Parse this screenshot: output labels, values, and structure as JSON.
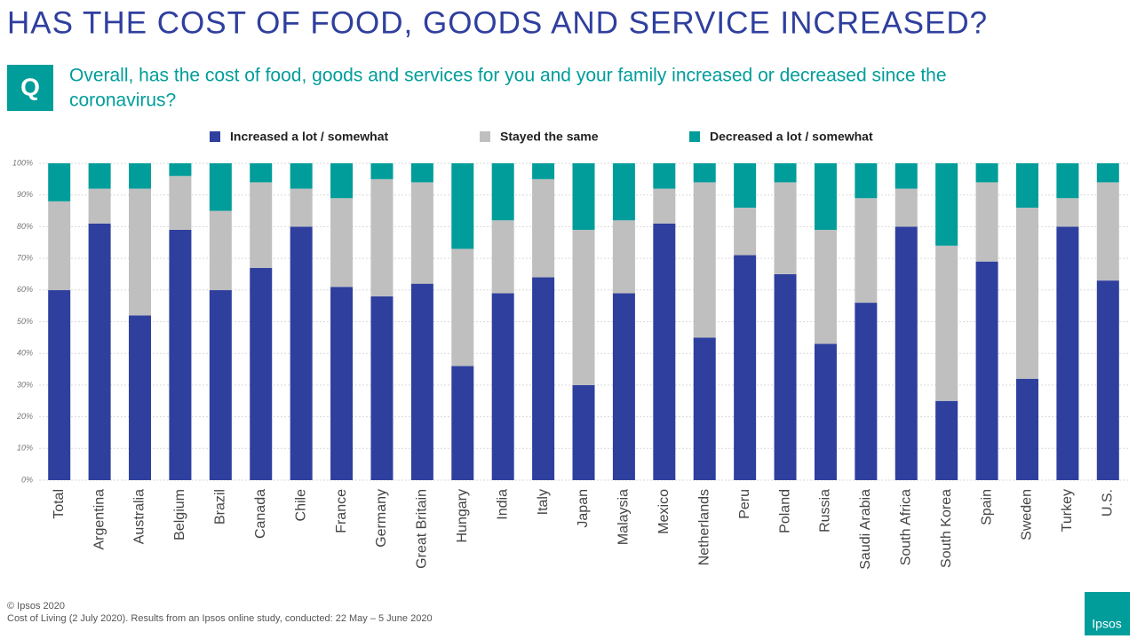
{
  "slide": {
    "title": "HAS THE COST OF FOOD, GOODS AND SERVICE INCREASED?",
    "badge": "Q",
    "question_line1": "Overall, has the cost of food, goods and services for you and your family increased or decreased since the",
    "question_line2": "coronavirus?",
    "copyright": "© Ipsos 2020",
    "source": "Cost of Living (2 July 2020). Results from an Ipsos online study, conducted: 22 May  – 5 June 2020",
    "logo": "Ipsos"
  },
  "chart_data": {
    "type": "stacked_bar",
    "categories": [
      "Total",
      "Argentina",
      "Australia",
      "Belgium",
      "Brazil",
      "Canada",
      "Chile",
      "France",
      "Germany",
      "Great Britain",
      "Hungary",
      "India",
      "Italy",
      "Japan",
      "Malaysia",
      "Mexico",
      "Netherlands",
      "Peru",
      "Poland",
      "Russia",
      "Saudi Arabia",
      "South Africa",
      "South Korea",
      "Spain",
      "Sweden",
      "Turkey",
      "U.S."
    ],
    "series": [
      {
        "name": "Increased a lot / somewhat",
        "color": "#2f3f9e",
        "values": [
          60,
          81,
          52,
          79,
          60,
          67,
          80,
          61,
          58,
          62,
          36,
          59,
          64,
          30,
          59,
          81,
          45,
          71,
          65,
          43,
          56,
          80,
          25,
          69,
          32,
          80,
          63
        ]
      },
      {
        "name": "Stayed the same",
        "color": "#bfbfbf",
        "values": [
          28,
          11,
          40,
          17,
          25,
          27,
          12,
          28,
          37,
          32,
          37,
          23,
          31,
          49,
          23,
          11,
          49,
          15,
          29,
          36,
          33,
          12,
          49,
          25,
          54,
          9,
          31
        ]
      },
      {
        "name": "Decreased a lot / somewhat",
        "color": "#009d9a",
        "values": [
          12,
          8,
          8,
          4,
          15,
          6,
          8,
          11,
          5,
          6,
          27,
          18,
          5,
          21,
          18,
          8,
          6,
          14,
          6,
          21,
          11,
          8,
          26,
          6,
          14,
          11,
          6
        ]
      }
    ],
    "ylim": [
      0,
      100
    ],
    "yticks": [
      {
        "value": 0,
        "label": "0%"
      },
      {
        "value": 10,
        "label": "10%"
      },
      {
        "value": 20,
        "label": "20%"
      },
      {
        "value": 30,
        "label": "30%"
      },
      {
        "value": 40,
        "label": "40%"
      },
      {
        "value": 50,
        "label": "50%"
      },
      {
        "value": 60,
        "label": "60%"
      },
      {
        "value": 70,
        "label": "70%"
      },
      {
        "value": 80,
        "label": "80%"
      },
      {
        "value": 90,
        "label": "90%"
      },
      {
        "value": 100,
        "label": "100%"
      }
    ],
    "grid": true
  }
}
